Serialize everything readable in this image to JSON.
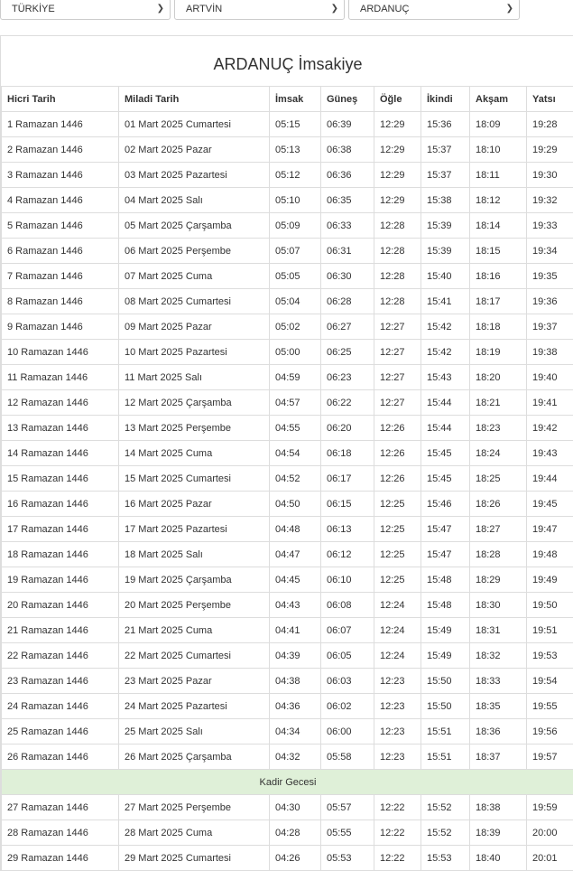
{
  "selects": {
    "country": "TÜRKİYE",
    "city": "ARTVİN",
    "district": "ARDANUÇ"
  },
  "title": "ARDANUÇ İmsakiye",
  "headers": [
    "Hicri Tarih",
    "Miladi Tarih",
    "İmsak",
    "Güneş",
    "Öğle",
    "İkindi",
    "Akşam",
    "Yatsı"
  ],
  "rows": [
    [
      "1 Ramazan 1446",
      "01 Mart 2025 Cumartesi",
      "05:15",
      "06:39",
      "12:29",
      "15:36",
      "18:09",
      "19:28"
    ],
    [
      "2 Ramazan 1446",
      "02 Mart 2025 Pazar",
      "05:13",
      "06:38",
      "12:29",
      "15:37",
      "18:10",
      "19:29"
    ],
    [
      "3 Ramazan 1446",
      "03 Mart 2025 Pazartesi",
      "05:12",
      "06:36",
      "12:29",
      "15:37",
      "18:11",
      "19:30"
    ],
    [
      "4 Ramazan 1446",
      "04 Mart 2025 Salı",
      "05:10",
      "06:35",
      "12:29",
      "15:38",
      "18:12",
      "19:32"
    ],
    [
      "5 Ramazan 1446",
      "05 Mart 2025 Çarşamba",
      "05:09",
      "06:33",
      "12:28",
      "15:39",
      "18:14",
      "19:33"
    ],
    [
      "6 Ramazan 1446",
      "06 Mart 2025 Perşembe",
      "05:07",
      "06:31",
      "12:28",
      "15:39",
      "18:15",
      "19:34"
    ],
    [
      "7 Ramazan 1446",
      "07 Mart 2025 Cuma",
      "05:05",
      "06:30",
      "12:28",
      "15:40",
      "18:16",
      "19:35"
    ],
    [
      "8 Ramazan 1446",
      "08 Mart 2025 Cumartesi",
      "05:04",
      "06:28",
      "12:28",
      "15:41",
      "18:17",
      "19:36"
    ],
    [
      "9 Ramazan 1446",
      "09 Mart 2025 Pazar",
      "05:02",
      "06:27",
      "12:27",
      "15:42",
      "18:18",
      "19:37"
    ],
    [
      "10 Ramazan 1446",
      "10 Mart 2025 Pazartesi",
      "05:00",
      "06:25",
      "12:27",
      "15:42",
      "18:19",
      "19:38"
    ],
    [
      "11 Ramazan 1446",
      "11 Mart 2025 Salı",
      "04:59",
      "06:23",
      "12:27",
      "15:43",
      "18:20",
      "19:40"
    ],
    [
      "12 Ramazan 1446",
      "12 Mart 2025 Çarşamba",
      "04:57",
      "06:22",
      "12:27",
      "15:44",
      "18:21",
      "19:41"
    ],
    [
      "13 Ramazan 1446",
      "13 Mart 2025 Perşembe",
      "04:55",
      "06:20",
      "12:26",
      "15:44",
      "18:23",
      "19:42"
    ],
    [
      "14 Ramazan 1446",
      "14 Mart 2025 Cuma",
      "04:54",
      "06:18",
      "12:26",
      "15:45",
      "18:24",
      "19:43"
    ],
    [
      "15 Ramazan 1446",
      "15 Mart 2025 Cumartesi",
      "04:52",
      "06:17",
      "12:26",
      "15:45",
      "18:25",
      "19:44"
    ],
    [
      "16 Ramazan 1446",
      "16 Mart 2025 Pazar",
      "04:50",
      "06:15",
      "12:25",
      "15:46",
      "18:26",
      "19:45"
    ],
    [
      "17 Ramazan 1446",
      "17 Mart 2025 Pazartesi",
      "04:48",
      "06:13",
      "12:25",
      "15:47",
      "18:27",
      "19:47"
    ],
    [
      "18 Ramazan 1446",
      "18 Mart 2025 Salı",
      "04:47",
      "06:12",
      "12:25",
      "15:47",
      "18:28",
      "19:48"
    ],
    [
      "19 Ramazan 1446",
      "19 Mart 2025 Çarşamba",
      "04:45",
      "06:10",
      "12:25",
      "15:48",
      "18:29",
      "19:49"
    ],
    [
      "20 Ramazan 1446",
      "20 Mart 2025 Perşembe",
      "04:43",
      "06:08",
      "12:24",
      "15:48",
      "18:30",
      "19:50"
    ],
    [
      "21 Ramazan 1446",
      "21 Mart 2025 Cuma",
      "04:41",
      "06:07",
      "12:24",
      "15:49",
      "18:31",
      "19:51"
    ],
    [
      "22 Ramazan 1446",
      "22 Mart 2025 Cumartesi",
      "04:39",
      "06:05",
      "12:24",
      "15:49",
      "18:32",
      "19:53"
    ],
    [
      "23 Ramazan 1446",
      "23 Mart 2025 Pazar",
      "04:38",
      "06:03",
      "12:23",
      "15:50",
      "18:33",
      "19:54"
    ],
    [
      "24 Ramazan 1446",
      "24 Mart 2025 Pazartesi",
      "04:36",
      "06:02",
      "12:23",
      "15:50",
      "18:35",
      "19:55"
    ],
    [
      "25 Ramazan 1446",
      "25 Mart 2025 Salı",
      "04:34",
      "06:00",
      "12:23",
      "15:51",
      "18:36",
      "19:56"
    ],
    [
      "26 Ramazan 1446",
      "26 Mart 2025 Çarşamba",
      "04:32",
      "05:58",
      "12:23",
      "15:51",
      "18:37",
      "19:57"
    ],
    [
      "27 Ramazan 1446",
      "27 Mart 2025 Perşembe",
      "04:30",
      "05:57",
      "12:22",
      "15:52",
      "18:38",
      "19:59"
    ],
    [
      "28 Ramazan 1446",
      "28 Mart 2025 Cuma",
      "04:28",
      "05:55",
      "12:22",
      "15:52",
      "18:39",
      "20:00"
    ],
    [
      "29 Ramazan 1446",
      "29 Mart 2025 Cumartesi",
      "04:26",
      "05:53",
      "12:22",
      "15:53",
      "18:40",
      "20:01"
    ]
  ],
  "kadir_label": "Kadir Gecesi",
  "colors": {
    "kadir_bg": "#dff0d8",
    "border": "#dddddd"
  }
}
